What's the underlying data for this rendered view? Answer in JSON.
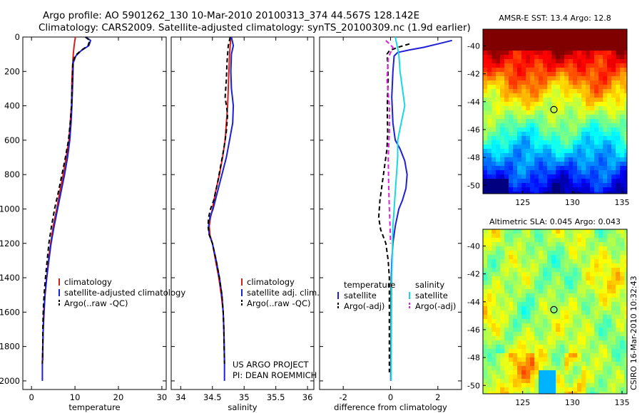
{
  "header": {
    "line1": "Argo profile: AO 5901262_130 10-Mar-2010 20100313_374 44.567S 128.142E",
    "line2": "Climatology: CARS2009. Satellite-adjusted climatology: synTS_20100309.nc (1.9d earlier)"
  },
  "credit": "CSIRO 16-Mar-2010 10:32:43",
  "project_note": [
    "US ARGO PROJECT",
    "PI: DEAN ROEMMICH"
  ],
  "colors": {
    "climatology": "#d62020",
    "satellite": "#1f1fd6",
    "argo": "#000000",
    "satellite_diff_sal": "#18d8e0",
    "argo_diff_sal": "#e020e0"
  },
  "chart_data": [
    {
      "type": "line",
      "id": "temperature",
      "xlabel": "temperature",
      "ylabel": "",
      "xlim": [
        -2,
        31
      ],
      "ylim": [
        2050,
        0
      ],
      "xticks": [
        0,
        10,
        20,
        30
      ],
      "yticks": [
        0,
        200,
        400,
        600,
        800,
        1000,
        1200,
        1400,
        1600,
        1800,
        2000
      ],
      "legend": [
        "climatology",
        "satellite-adjusted climatology",
        "Argo(..raw -QC)"
      ],
      "series": [
        {
          "name": "climatology",
          "color": "#d62020",
          "dash": false,
          "x": [
            10.1,
            9.8,
            9.6,
            9.5,
            9.3,
            9.2,
            8.9,
            8.6,
            8.0,
            7.3,
            6.5,
            5.8,
            5.0,
            4.4,
            3.9,
            3.5,
            3.1,
            2.8,
            2.7,
            2.6,
            2.6
          ],
          "y": [
            0,
            50,
            100,
            150,
            250,
            400,
            500,
            600,
            700,
            800,
            900,
            1000,
            1100,
            1200,
            1300,
            1400,
            1500,
            1600,
            1700,
            1800,
            1880
          ]
        },
        {
          "name": "satellite-adjusted climatology",
          "color": "#1f1fd6",
          "dash": false,
          "x": [
            12.5,
            13.6,
            13.2,
            11.4,
            10.2,
            9.6,
            9.5,
            9.3,
            9.1,
            8.8,
            8.3,
            7.6,
            6.8,
            6.0,
            5.2,
            4.5,
            4.0,
            3.5,
            3.1,
            2.9,
            2.7,
            2.6,
            2.5,
            2.5,
            2.5
          ],
          "y": [
            0,
            20,
            50,
            80,
            110,
            150,
            250,
            400,
            500,
            600,
            700,
            800,
            900,
            1000,
            1100,
            1200,
            1300,
            1400,
            1500,
            1600,
            1700,
            1800,
            1900,
            1960,
            2000
          ]
        },
        {
          "name": "Argo(..raw -QC)",
          "color": "#000000",
          "dash": true,
          "x": [
            12.4,
            13.4,
            13.0,
            11.3,
            10.0,
            9.5,
            9.4,
            9.2,
            8.9,
            8.5,
            7.8,
            7.0,
            6.2,
            5.3,
            4.6,
            4.0,
            3.6,
            3.2,
            2.9,
            2.7,
            2.6,
            2.6,
            2.5
          ],
          "y": [
            0,
            20,
            50,
            80,
            110,
            150,
            250,
            400,
            500,
            600,
            700,
            800,
            900,
            1000,
            1100,
            1200,
            1300,
            1400,
            1500,
            1600,
            1700,
            1800,
            1900
          ]
        }
      ]
    },
    {
      "type": "line",
      "id": "salinity",
      "xlabel": "salinity",
      "ylabel": "",
      "xlim": [
        33.85,
        36.1
      ],
      "ylim": [
        2050,
        0
      ],
      "xticks": [
        34,
        34.5,
        35,
        35.5,
        36
      ],
      "xticklabels": [
        "34",
        "34.5",
        "35",
        "35.5",
        "36"
      ],
      "legend": [
        "climatology",
        "satellite adj. clim.",
        "Argo(..raw -QC)"
      ],
      "series": [
        {
          "name": "climatology",
          "color": "#d62020",
          "dash": false,
          "x": [
            34.79,
            34.77,
            34.76,
            34.75,
            34.74,
            34.72,
            34.7,
            34.66,
            34.61,
            34.55,
            34.5,
            34.47,
            34.45,
            34.46,
            34.5,
            34.55,
            34.6,
            34.64,
            34.67,
            34.68,
            34.69
          ],
          "y": [
            0,
            100,
            200,
            300,
            400,
            500,
            600,
            700,
            800,
            900,
            1000,
            1050,
            1100,
            1150,
            1200,
            1300,
            1400,
            1500,
            1600,
            1700,
            1880
          ]
        },
        {
          "name": "satellite adj. clim.",
          "color": "#1f1fd6",
          "dash": false,
          "x": [
            34.8,
            34.83,
            34.8,
            34.79,
            34.8,
            34.83,
            34.82,
            34.77,
            34.72,
            34.65,
            34.58,
            34.51,
            34.46,
            34.44,
            34.45,
            34.5,
            34.56,
            34.61,
            34.65,
            34.67,
            34.68,
            34.69,
            34.69
          ],
          "y": [
            0,
            50,
            100,
            200,
            300,
            400,
            500,
            600,
            700,
            800,
            900,
            1000,
            1050,
            1100,
            1150,
            1200,
            1300,
            1400,
            1500,
            1600,
            1700,
            1900,
            2000
          ]
        },
        {
          "name": "Argo(..raw -QC)",
          "color": "#000000",
          "dash": true,
          "x": [
            34.78,
            34.75,
            34.73,
            34.72,
            34.7,
            34.74,
            34.72,
            34.68,
            34.63,
            34.58,
            34.52,
            34.47,
            34.44,
            34.43,
            34.45,
            34.5,
            34.56,
            34.61,
            34.65,
            34.67,
            34.68,
            34.69
          ],
          "y": [
            0,
            50,
            150,
            250,
            350,
            450,
            550,
            650,
            750,
            850,
            950,
            1000,
            1050,
            1100,
            1150,
            1200,
            1300,
            1400,
            1500,
            1600,
            1700,
            1900
          ]
        }
      ]
    },
    {
      "type": "line",
      "id": "difference",
      "xlabel": "difference from climatology",
      "ylabel": "",
      "xlim": [
        -3,
        3
      ],
      "ylim": [
        2050,
        0
      ],
      "xticks": [
        -2,
        0,
        2
      ],
      "legend": [
        "temperature",
        "satellite",
        "Argo(-adj)",
        "salinity",
        "satellite",
        "Argo(-adj)"
      ],
      "series": [
        {
          "name": "satellite",
          "group": "temperature",
          "color": "#1f1fd6",
          "dash": false,
          "x": [
            2.6,
            2.0,
            1.4,
            0.8,
            0.3,
            0.15,
            0.1,
            0.05,
            0.1,
            0.2,
            0.4,
            0.6,
            0.7,
            0.65,
            0.5,
            0.35,
            0.2,
            0.1,
            0.05,
            0.03,
            0.02,
            0.02,
            0.01,
            0.01
          ],
          "y": [
            20,
            40,
            60,
            75,
            90,
            110,
            200,
            350,
            500,
            600,
            650,
            720,
            800,
            880,
            950,
            1000,
            1100,
            1200,
            1300,
            1400,
            1500,
            1700,
            1900,
            2000
          ]
        },
        {
          "name": "Argo(-adj)",
          "group": "temperature",
          "color": "#000000",
          "dash": true,
          "x": [
            0.8,
            0.3,
            -0.05,
            -0.15,
            -0.12,
            -0.1,
            -0.13,
            -0.14,
            -0.12,
            -0.15,
            -0.25,
            -0.35,
            -0.45,
            -0.5,
            -0.42,
            -0.2,
            -0.1,
            -0.05,
            -0.05,
            -0.05,
            -0.05
          ],
          "y": [
            40,
            60,
            80,
            100,
            150,
            250,
            350,
            450,
            550,
            650,
            750,
            850,
            950,
            1050,
            1120,
            1200,
            1300,
            1400,
            1600,
            1800,
            1950
          ]
        },
        {
          "name": "satellite",
          "group": "salinity",
          "color": "#18d8e0",
          "dash": false,
          "x": [
            0.2,
            0.35,
            0.4,
            0.5,
            0.6,
            0.45,
            0.3,
            0.3,
            0.25,
            0.2,
            0.15,
            0.1,
            0.08,
            0.05,
            0.04,
            0.03,
            0.02
          ],
          "y": [
            0,
            100,
            200,
            300,
            400,
            500,
            600,
            700,
            800,
            900,
            1000,
            1100,
            1200,
            1400,
            1600,
            1800,
            2000
          ]
        },
        {
          "name": "Argo(-adj)",
          "group": "salinity",
          "color": "#e020e0",
          "dash": true,
          "x": [
            -0.2,
            0.1,
            -0.1,
            -0.15,
            -0.05,
            -0.05,
            -0.1,
            -0.08,
            -0.05,
            -0.02,
            0.0
          ],
          "y": [
            20,
            60,
            120,
            250,
            400,
            550,
            700,
            850,
            1000,
            1100,
            1200
          ]
        }
      ]
    },
    {
      "type": "heatmap",
      "id": "sst",
      "title": "AMSR-E SST: 13.4 Argo: 12.8",
      "xlim": [
        121,
        135.5
      ],
      "ylim": [
        -50.6,
        -38.8
      ],
      "xticks": [
        125,
        130,
        135
      ],
      "yticks": [
        -40,
        -42,
        -44,
        -46,
        -48,
        -50
      ],
      "marker": {
        "lon": 128.142,
        "lat": -44.567
      },
      "summary": "warm (dark red) north of about -42, orange/yellow around -43 to -46, green band near -46.5 to -47.5, cyan/blue south of -48"
    },
    {
      "type": "heatmap",
      "id": "sla",
      "title": "Altimetric SLA: 0.045 Argo: 0.043",
      "xlim": [
        121,
        135.5
      ],
      "ylim": [
        -50.6,
        -38.8
      ],
      "xticks": [
        125,
        130,
        135
      ],
      "yticks": [
        -40,
        -42,
        -44,
        -46,
        -48,
        -50
      ],
      "marker": {
        "lon": 128.142,
        "lat": -44.567
      },
      "summary": "mostly green/yellow field with patchy orange near -48 to -50 and a cyan spot near 128E -49.5"
    }
  ]
}
